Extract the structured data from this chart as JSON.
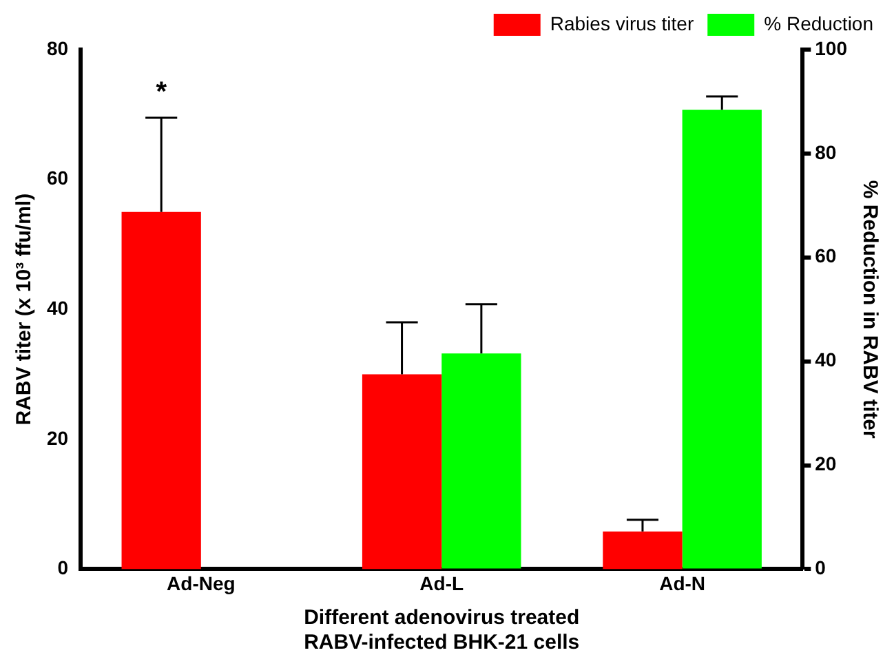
{
  "chart_data": {
    "type": "bar",
    "xlabel": "Different adenovirus treated\nRABV-infected BHK-21 cells",
    "ylabel": "RABV titer (x 10³ ffu/ml)",
    "y2label": "% Reduction in RABV titer",
    "categories": [
      "Ad-Neg",
      "Ad-L",
      "Ad-N"
    ],
    "series": [
      {
        "name": "Rabies virus titer",
        "color": "#ff0000",
        "values": [
          55,
          30,
          5.8
        ],
        "errors": [
          [
            55,
            69.5
          ],
          [
            30,
            38
          ],
          [
            5.8,
            7.6
          ]
        ]
      },
      {
        "name": "% Reduction",
        "color": "#00ff00",
        "axis": "y2",
        "values": [
          null,
          41.5,
          88.4
        ],
        "errors": [
          null,
          [
            41.5,
            51
          ],
          [
            88.4,
            91
          ]
        ]
      }
    ],
    "ylim": [
      0,
      80
    ],
    "yticks": [
      0,
      20,
      40,
      60,
      80
    ],
    "y2lim": [
      0,
      100
    ],
    "y2ticks": [
      0,
      20,
      40,
      60,
      80,
      100
    ],
    "annotations": [
      "*"
    ],
    "grid": false,
    "legend": "top right"
  }
}
